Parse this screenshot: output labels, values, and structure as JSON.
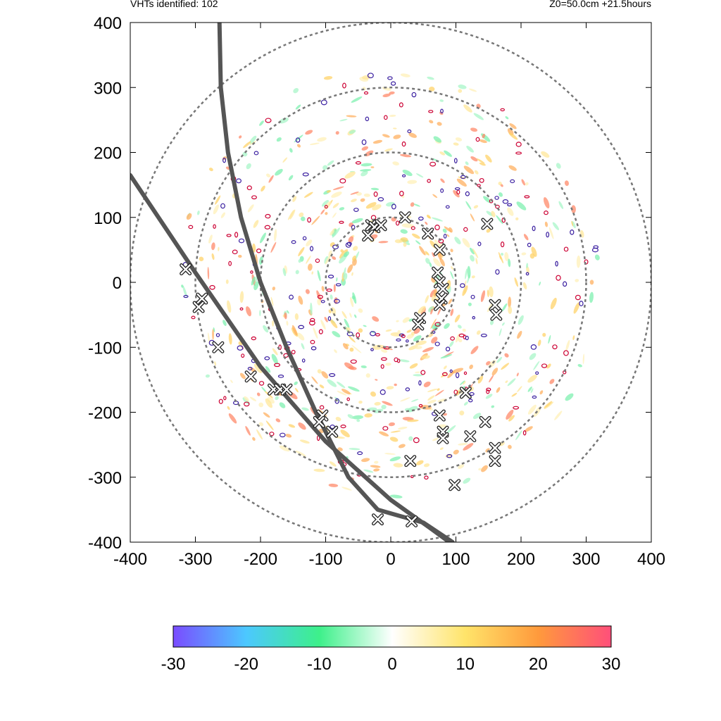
{
  "header": {
    "left": "VHTs identified: 102",
    "right": "Z0=50.0cm  +21.5hours"
  },
  "colorbar": {
    "min": -30,
    "max": 30,
    "tick_labels": [
      "-30",
      "-20",
      "-10",
      "0",
      "10",
      "20",
      "30"
    ],
    "stops": [
      "#7a4cff",
      "#4cc8ff",
      "#3df08a",
      "#ffffff",
      "#ffe46a",
      "#ff9a3c",
      "#ff4f7a"
    ]
  },
  "chart_data": {
    "type": "scatter",
    "title": "",
    "xlabel": "",
    "ylabel": "",
    "xlim": [
      -400,
      400
    ],
    "ylim": [
      -400,
      400
    ],
    "xticks": [
      -400,
      -300,
      -200,
      -100,
      0,
      100,
      200,
      300,
      400
    ],
    "yticks": [
      -400,
      -300,
      -200,
      -100,
      0,
      100,
      200,
      300,
      400
    ],
    "xtick_labels": [
      "-400",
      "-300",
      "-200",
      "-100",
      "0",
      "100",
      "200",
      "300",
      "400"
    ],
    "ytick_labels": [
      "-400",
      "-300",
      "-200",
      "-100",
      "0",
      "100",
      "200",
      "300",
      "400"
    ],
    "grid": false,
    "range_rings": [
      100,
      200,
      300,
      400
    ],
    "tracks": [
      {
        "points": [
          [
            -263,
            400
          ],
          [
            -261,
            300
          ],
          [
            -250,
            200
          ],
          [
            -230,
            100
          ],
          [
            -200,
            0
          ],
          [
            -160,
            -100
          ],
          [
            -115,
            -200
          ],
          [
            -65,
            -300
          ],
          [
            -20,
            -350
          ],
          [
            15,
            -360
          ],
          [
            50,
            -370
          ],
          [
            95,
            -400
          ]
        ]
      },
      {
        "points": [
          [
            -400,
            165
          ],
          [
            -300,
            15
          ],
          [
            -200,
            -130
          ],
          [
            -100,
            -245
          ],
          [
            0,
            -335
          ],
          [
            60,
            -378
          ],
          [
            90,
            -400
          ]
        ]
      }
    ],
    "vht_markers": [
      [
        -30,
        88
      ],
      [
        -25,
        85
      ],
      [
        -15,
        88
      ],
      [
        -35,
        72
      ],
      [
        22,
        100
      ],
      [
        57,
        75
      ],
      [
        75,
        50
      ],
      [
        72,
        15
      ],
      [
        75,
        0
      ],
      [
        80,
        -10
      ],
      [
        78,
        -25
      ],
      [
        75,
        -35
      ],
      [
        45,
        -55
      ],
      [
        42,
        -65
      ],
      [
        148,
        90
      ],
      [
        160,
        -35
      ],
      [
        162,
        -50
      ],
      [
        -315,
        20
      ],
      [
        -290,
        -25
      ],
      [
        -295,
        -38
      ],
      [
        -265,
        -100
      ],
      [
        -215,
        -145
      ],
      [
        -180,
        -165
      ],
      [
        -170,
        -165
      ],
      [
        -160,
        -165
      ],
      [
        -105,
        -205
      ],
      [
        -110,
        -215
      ],
      [
        -90,
        -230
      ],
      [
        75,
        -205
      ],
      [
        80,
        -230
      ],
      [
        80,
        -240
      ],
      [
        115,
        -170
      ],
      [
        145,
        -215
      ],
      [
        122,
        -237
      ],
      [
        160,
        -255
      ],
      [
        160,
        -275
      ],
      [
        30,
        -275
      ],
      [
        98,
        -312
      ],
      [
        -20,
        -365
      ],
      [
        32,
        -368
      ]
    ]
  }
}
